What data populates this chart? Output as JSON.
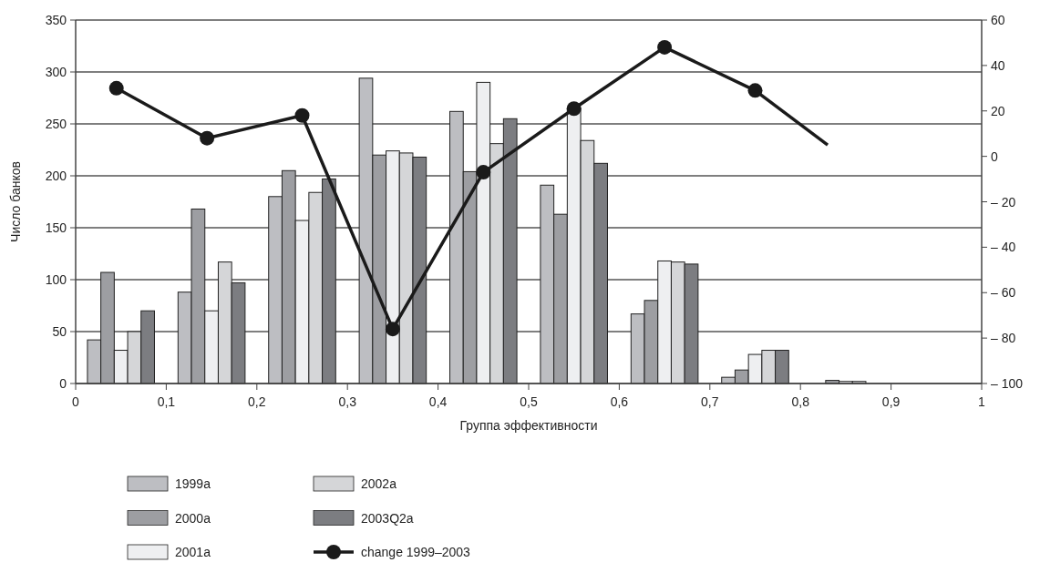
{
  "chart_data": {
    "type": "bar",
    "xlabel": "Группа эффективности",
    "ylabel": "Число банков",
    "x": [
      0.05,
      0.15,
      0.25,
      0.35,
      0.45,
      0.55,
      0.65,
      0.75,
      0.85
    ],
    "xlim": [
      0,
      1
    ],
    "xticks": [
      0,
      {
        "value": 0.1,
        "label": "0,1"
      },
      {
        "value": 0.2,
        "label": "0,2"
      },
      {
        "value": 0.3,
        "label": "0,3"
      },
      {
        "value": 0.4,
        "label": "0,4"
      },
      {
        "value": 0.5,
        "label": "0,5"
      },
      {
        "value": 0.6,
        "label": "0,6"
      },
      {
        "value": 0.7,
        "label": "0,7"
      },
      {
        "value": 0.8,
        "label": "0,8"
      },
      {
        "value": 0.9,
        "label": "0,9"
      },
      1
    ],
    "ylim": [
      0,
      350
    ],
    "yticks": [
      0,
      50,
      100,
      150,
      200,
      250,
      300,
      350
    ],
    "y2lim": [
      -100,
      60
    ],
    "y2ticks": [
      {
        "value": -100,
        "label": "– 100"
      },
      {
        "value": -80,
        "label": "– 80"
      },
      {
        "value": -60,
        "label": "– 60"
      },
      {
        "value": -40,
        "label": "– 40"
      },
      {
        "value": -20,
        "label": "– 20"
      },
      0,
      20,
      40,
      60
    ],
    "grid": "y",
    "legend": "bottom",
    "series": [
      {
        "name": "1999a",
        "color": "#bdbec2",
        "values": [
          42,
          88,
          180,
          294,
          262,
          191,
          67,
          6,
          0
        ]
      },
      {
        "name": "2000a",
        "color": "#9d9ea2",
        "values": [
          107,
          168,
          205,
          220,
          204,
          163,
          80,
          13,
          3
        ]
      },
      {
        "name": "2001a",
        "color": "#eeeff1",
        "values": [
          32,
          70,
          157,
          224,
          290,
          265,
          118,
          28,
          2
        ]
      },
      {
        "name": "2002a",
        "color": "#d5d6d8",
        "values": [
          50,
          117,
          184,
          222,
          231,
          234,
          117,
          32,
          2
        ]
      },
      {
        "name": "2003Q2a",
        "color": "#7c7d81",
        "values": [
          70,
          97,
          197,
          218,
          255,
          212,
          115,
          32,
          0
        ]
      },
      {
        "name": "change 1999–2003",
        "type": "line",
        "axis": "y2",
        "color": "#1a1a1a",
        "marker": "circle",
        "x": [
          0.045,
          0.145,
          0.25,
          0.35,
          0.45,
          0.55,
          0.65,
          0.75
        ],
        "values": [
          30,
          8,
          18,
          -76,
          -7,
          21,
          48,
          29
        ]
      },
      {
        "type": "line",
        "axis": "y2",
        "color": "#1a1a1a",
        "marker": "none",
        "x": [
          0.75,
          0.83
        ],
        "values": [
          29,
          5
        ]
      }
    ]
  }
}
